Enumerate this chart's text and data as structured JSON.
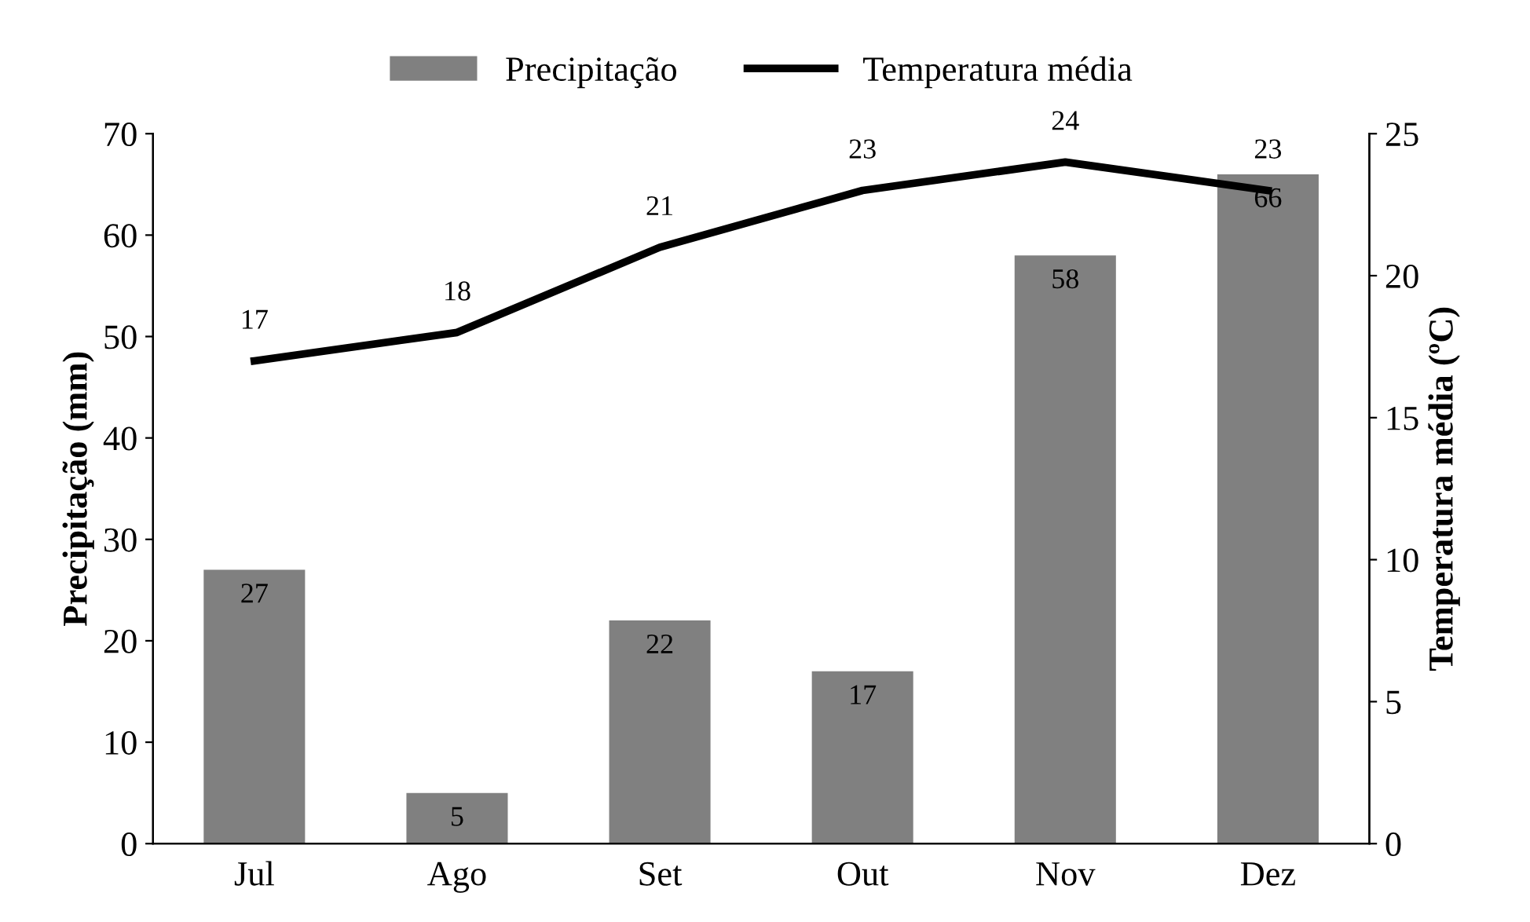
{
  "chart_data": {
    "type": "bar",
    "categories": [
      "Jul",
      "Ago",
      "Set",
      "Out",
      "Nov",
      "Dez"
    ],
    "ylabel": "Precipitação (mm)",
    "y2label": "Temperatura média (ºC)",
    "series": [
      {
        "name": "Precipitação",
        "color": "#808080",
        "values": [
          27,
          5,
          22,
          17,
          58,
          66
        ]
      },
      {
        "name": "Temperatura média",
        "type": "line",
        "axis": "y2",
        "color": "#000000",
        "values": [
          17,
          18,
          21,
          23,
          24,
          23
        ]
      }
    ],
    "ylim": [
      0,
      70
    ],
    "yticks": [
      0,
      10,
      20,
      30,
      40,
      50,
      60,
      70
    ],
    "y2lim": [
      0,
      25
    ],
    "y2ticks": [
      0,
      5,
      10,
      15,
      20,
      25
    ],
    "data_labels": true,
    "legend": "top",
    "grid": false,
    "marker": "none",
    "line_style": "solid"
  }
}
